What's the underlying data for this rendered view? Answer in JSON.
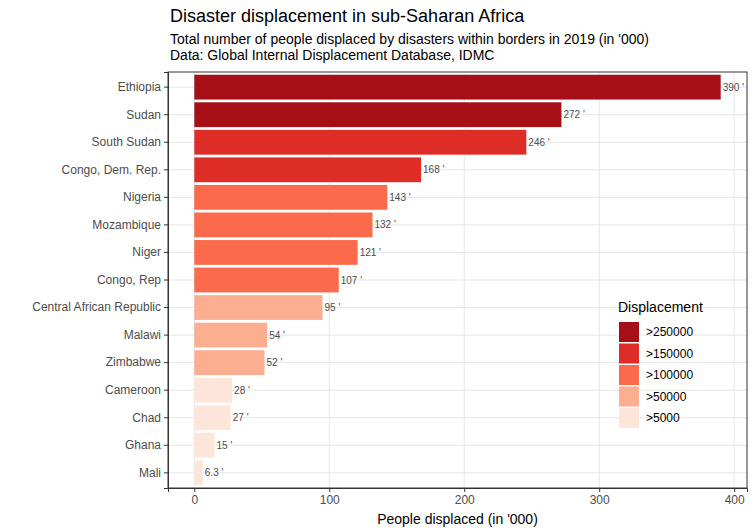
{
  "chart_data": {
    "type": "bar",
    "orientation": "horizontal",
    "title": "Disaster displacement in sub-Saharan Africa",
    "subtitle": [
      "Total number of people displaced by disasters within borders in 2019 (in '000)",
      "Data: Global Internal Displacement Database, IDMC"
    ],
    "x_label": "People displaced (in '000)",
    "legend_title": "Displacement",
    "categories": [
      "Ethiopia",
      "Sudan",
      "South Sudan",
      "Congo, Dem. Rep.",
      "Nigeria",
      "Mozambique",
      "Niger",
      "Congo, Rep",
      "Central African Republic",
      "Malawi",
      "Zimbabwe",
      "Cameroon",
      "Chad",
      "Ghana",
      "Mali"
    ],
    "series": [
      {
        "name": ">250000",
        "color": "#a50f15",
        "values": [
          390,
          272,
          null,
          null,
          null,
          null,
          null,
          null,
          null,
          null,
          null,
          null,
          null,
          null,
          null
        ],
        "value_labels": [
          "390 '",
          "272 '",
          null,
          null,
          null,
          null,
          null,
          null,
          null,
          null,
          null,
          null,
          null,
          null,
          null
        ]
      },
      {
        "name": ">150000",
        "color": "#de2d26",
        "values": [
          null,
          null,
          246,
          168,
          null,
          null,
          null,
          null,
          null,
          null,
          null,
          null,
          null,
          null,
          null
        ],
        "value_labels": [
          null,
          null,
          "246 '",
          "168 '",
          null,
          null,
          null,
          null,
          null,
          null,
          null,
          null,
          null,
          null,
          null
        ]
      },
      {
        "name": ">100000",
        "color": "#fb6a4a",
        "values": [
          null,
          null,
          null,
          null,
          143,
          132,
          121,
          107,
          null,
          null,
          null,
          null,
          null,
          null,
          null
        ],
        "value_labels": [
          null,
          null,
          null,
          null,
          "143 '",
          "132 '",
          "121 '",
          "107 '",
          null,
          null,
          null,
          null,
          null,
          null,
          null
        ]
      },
      {
        "name": ">50000",
        "color": "#fcae91",
        "values": [
          null,
          null,
          null,
          null,
          null,
          null,
          null,
          null,
          95,
          54,
          52,
          null,
          null,
          null,
          null
        ],
        "value_labels": [
          null,
          null,
          null,
          null,
          null,
          null,
          null,
          null,
          "95 '",
          "54 '",
          "52 '",
          null,
          null,
          null,
          null
        ]
      },
      {
        "name": ">5000",
        "color": "#fee5d9",
        "values": [
          null,
          null,
          null,
          null,
          null,
          null,
          null,
          null,
          null,
          null,
          null,
          28,
          27,
          15,
          6.3
        ],
        "value_labels": [
          null,
          null,
          null,
          null,
          null,
          null,
          null,
          null,
          null,
          null,
          null,
          "28 '",
          "27 '",
          "15 '",
          "6.3 '"
        ]
      }
    ],
    "xlim": [
      -19.5,
      409.5
    ],
    "xticks": [
      0,
      100,
      200,
      300,
      400
    ],
    "grid": true,
    "data_labels": true,
    "legend": "bottom right"
  }
}
